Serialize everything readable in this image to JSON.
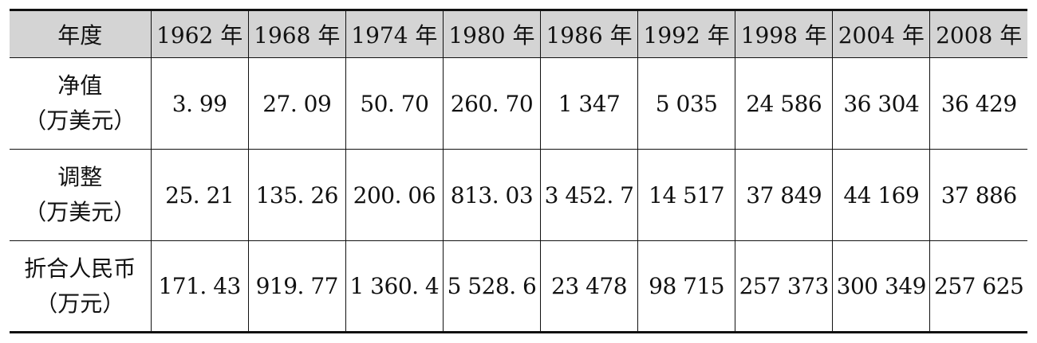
{
  "table": {
    "header": [
      "年度",
      "1962 年",
      "1968 年",
      "1974 年",
      "1980 年",
      "1986 年",
      "1992 年",
      "1998 年",
      "2004 年",
      "2008 年"
    ],
    "rows": [
      {
        "label": "净值",
        "unit": "（万美元）",
        "values": [
          "3. 99",
          "27. 09",
          "50. 70",
          "260. 70",
          "1 347",
          "5 035",
          "24 586",
          "36 304",
          "36 429"
        ]
      },
      {
        "label": "调整",
        "unit": "（万美元）",
        "values": [
          "25. 21",
          "135. 26",
          "200. 06",
          "813. 03",
          "3 452. 7",
          "14 517",
          "37 849",
          "44 169",
          "37 886"
        ]
      },
      {
        "label": "折合人民币",
        "unit": "（万元）",
        "values": [
          "171. 43",
          "919. 77",
          "1 360. 4",
          "5 528. 6",
          "23 478",
          "98 715",
          "257 373",
          "300 349",
          "257 625"
        ]
      }
    ]
  }
}
